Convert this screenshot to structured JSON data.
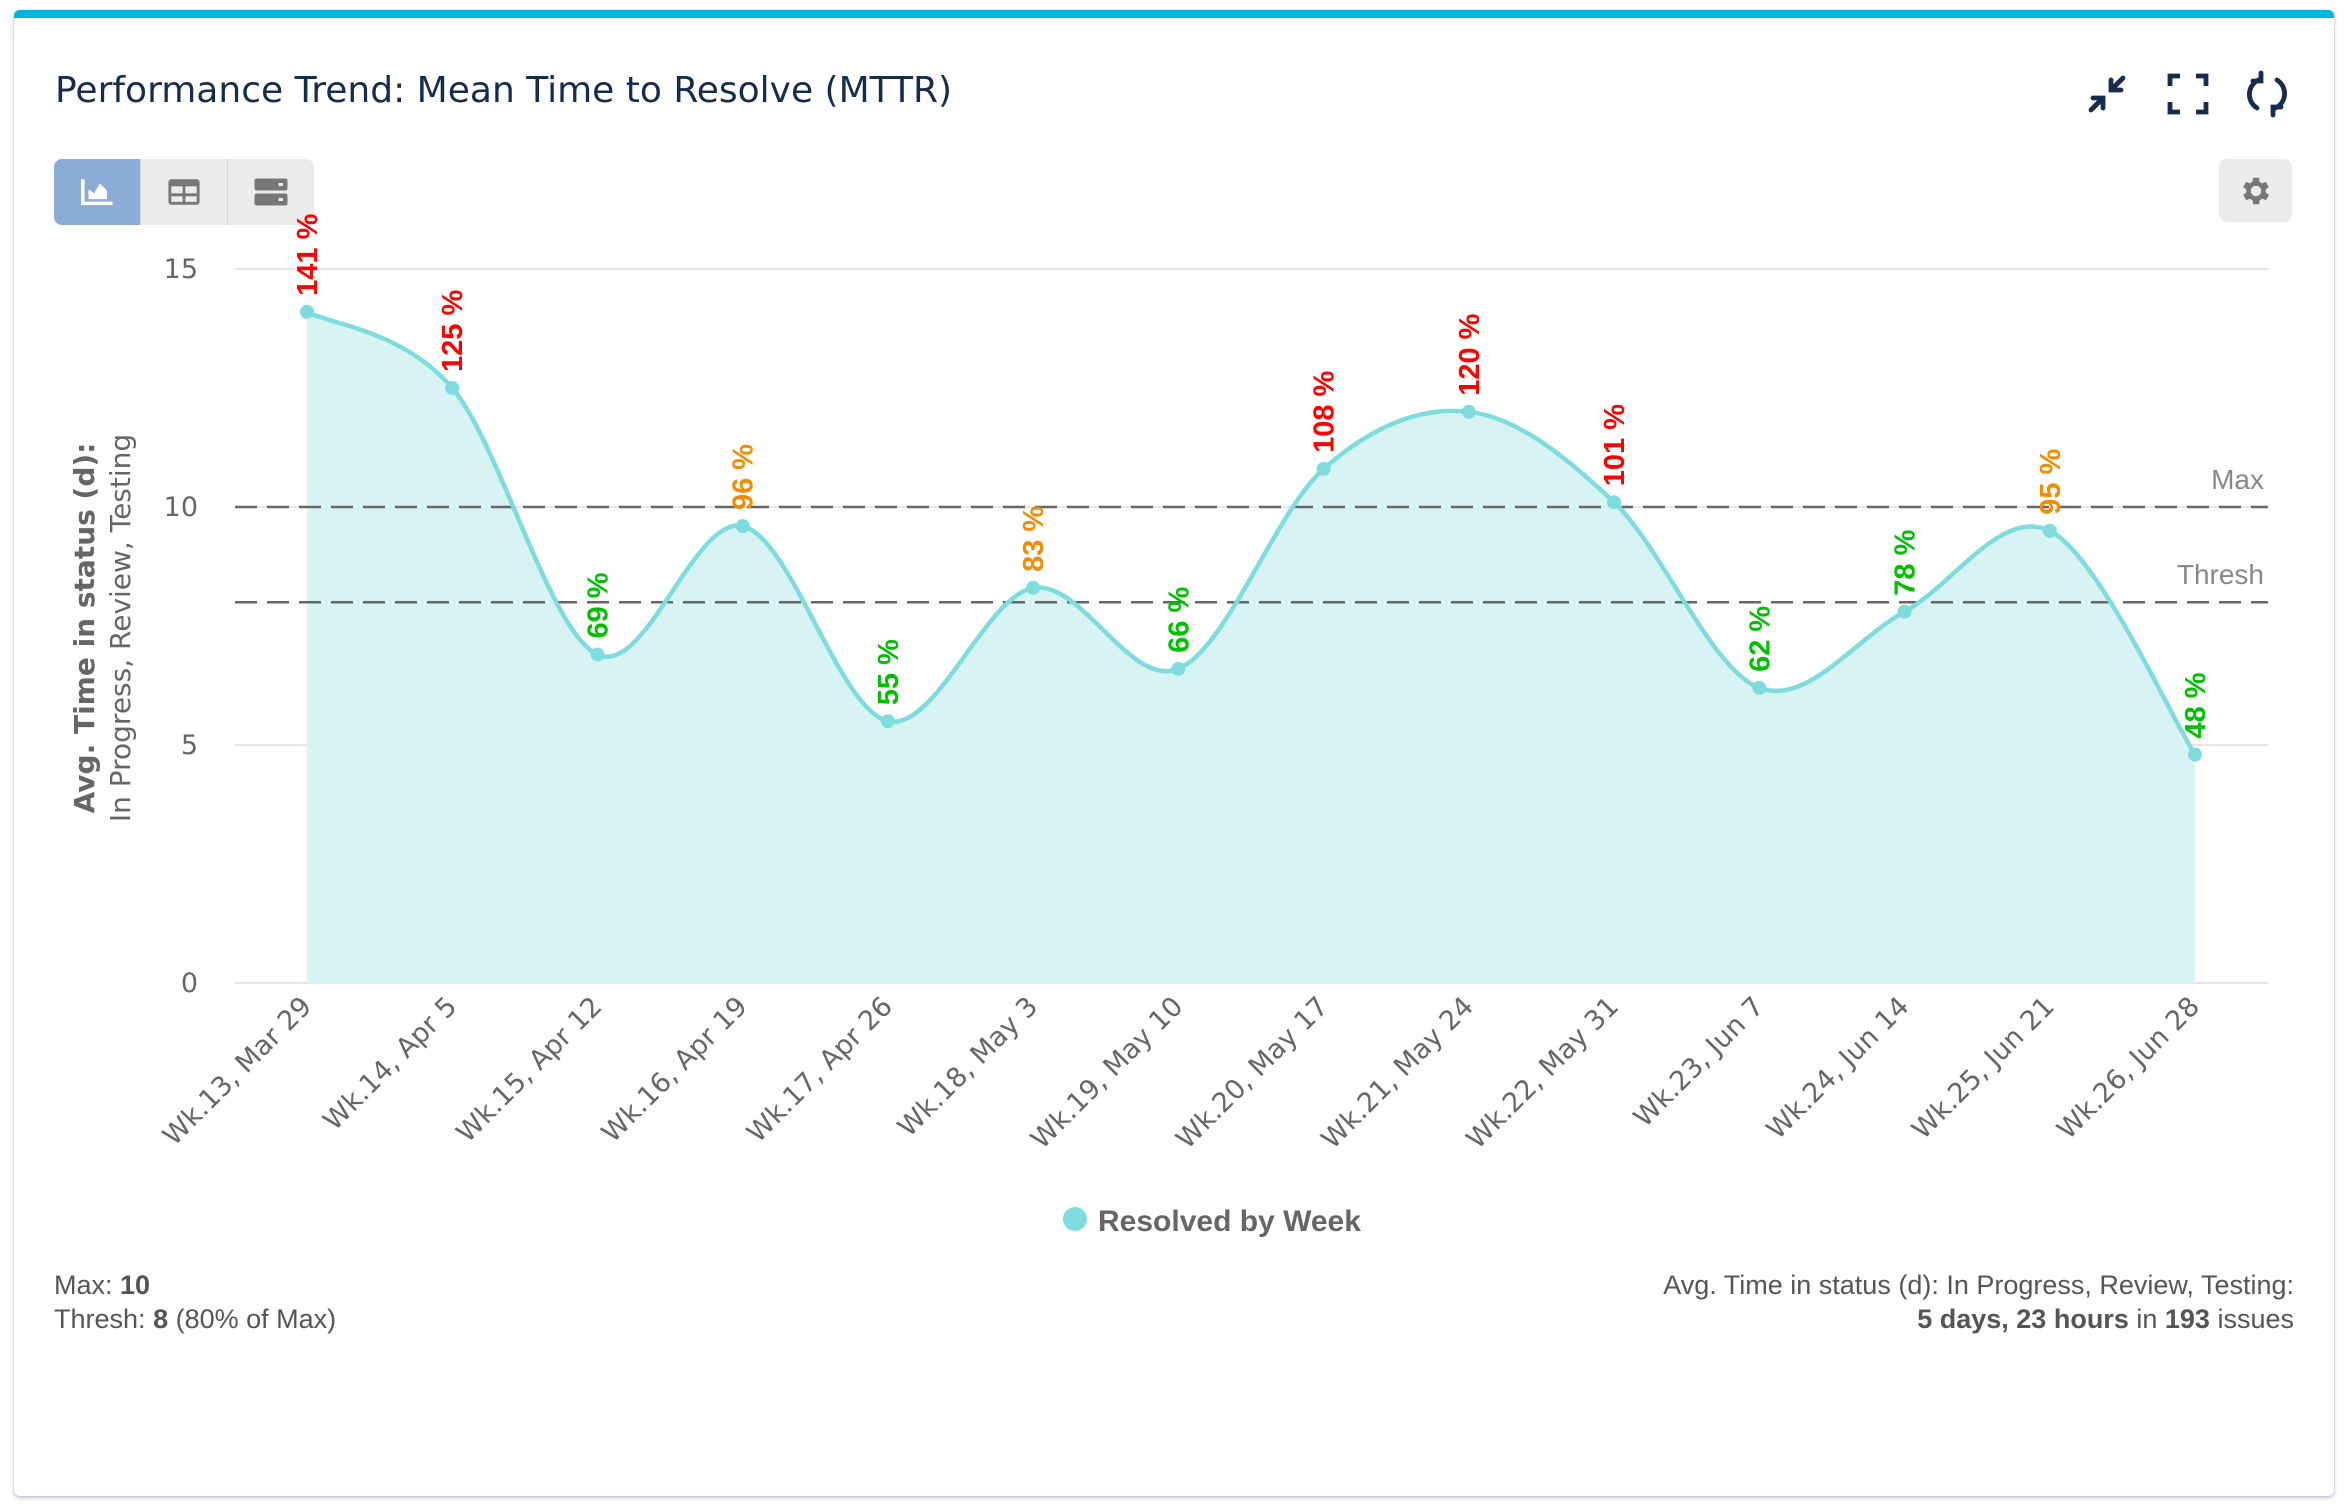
{
  "header": {
    "title": "Performance Trend: Mean Time to Resolve (MTTR)",
    "icons": [
      "collapse-icon",
      "fullscreen-icon",
      "refresh-icon"
    ],
    "accent_color": "#00b6da"
  },
  "toolbar": {
    "views": [
      {
        "icon": "area-chart-icon",
        "active": true
      },
      {
        "icon": "table-icon",
        "active": false
      },
      {
        "icon": "list-rows-icon",
        "active": false
      }
    ],
    "settings_icon": "gear-icon"
  },
  "chart_data": {
    "type": "area",
    "smooth": true,
    "categories": [
      "Wk.13, Mar 29",
      "Wk.14, Apr 5",
      "Wk.15, Apr 12",
      "Wk.16, Apr 19",
      "Wk.17, Apr 26",
      "Wk.18, May 3",
      "Wk.19, May 10",
      "Wk.20, May 17",
      "Wk.21, May 24",
      "Wk.22, May 31",
      "Wk.23, Jun 7",
      "Wk.24, Jun 14",
      "Wk.25, Jun 21",
      "Wk.26, Jun 28"
    ],
    "series": [
      {
        "name": "Resolved by Week",
        "color": "#7edcdc",
        "fill": "#d8f3f3",
        "values": [
          14.1,
          12.5,
          6.9,
          9.6,
          5.5,
          8.3,
          6.6,
          10.8,
          12.0,
          10.1,
          6.2,
          7.8,
          9.5,
          4.8
        ],
        "data_labels": [
          "141 %",
          "125 %",
          "69 %",
          "96 %",
          "55 %",
          "83 %",
          "66 %",
          "108 %",
          "120 %",
          "101 %",
          "62 %",
          "78 %",
          "95 %",
          "48 %"
        ]
      }
    ],
    "ylabel": "Avg. Time in status (d):",
    "ylabel_sub": "In Progress, Review, Testing",
    "ylim": [
      0,
      15
    ],
    "yticks": [
      "0",
      "5",
      "10",
      "15"
    ],
    "grid": true,
    "plot_lines": [
      {
        "label": "Max",
        "value": 10
      },
      {
        "label": "Thresh",
        "value": 8
      }
    ],
    "label_colors": {
      "above_max": "#ff0000",
      "above_thresh": "#f28c00",
      "below_thresh": "#00c000"
    },
    "legend_position": "bottom"
  },
  "footer": {
    "max_label": "Max:",
    "max_value": "10",
    "thresh_label": "Thresh:",
    "thresh_value": "8",
    "thresh_note": "(80% of Max)",
    "summary_label": "Avg. Time in status (d): In Progress, Review, Testing:",
    "summary_time": "5 days, 23 hours",
    "summary_in": "in",
    "summary_count": "193",
    "summary_unit": "issues"
  }
}
